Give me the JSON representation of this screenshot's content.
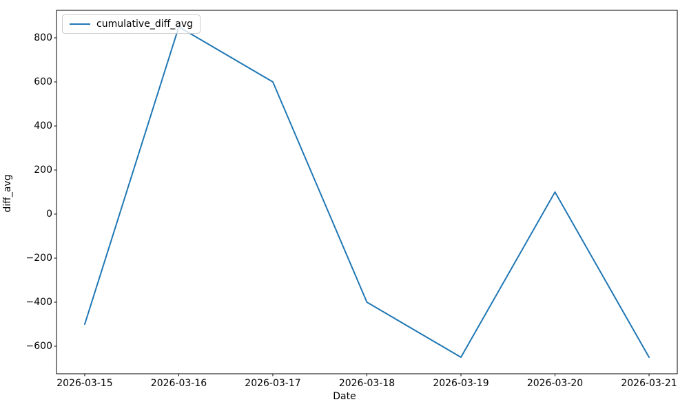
{
  "chart_data": {
    "type": "line",
    "title": "",
    "xlabel": "Date",
    "ylabel": "diff_avg",
    "categories": [
      "2026-03-15",
      "2026-03-16",
      "2026-03-17",
      "2026-03-18",
      "2026-03-19",
      "2026-03-20",
      "2026-03-21"
    ],
    "series": [
      {
        "name": "cumulative_diff_avg",
        "values": [
          -500,
          850,
          600,
          -400,
          -650,
          100,
          -650
        ],
        "color": "#1f77b4"
      }
    ],
    "legend": {
      "position": "upper-left",
      "entries": [
        "cumulative_diff_avg"
      ]
    },
    "xlim": [
      -0.3,
      6.3
    ],
    "ylim": [
      -725,
      925
    ],
    "yticks": [
      800,
      600,
      400,
      200,
      0,
      -200,
      -400,
      -600
    ],
    "grid": false,
    "axis_color": "#000000",
    "background": "#ffffff"
  }
}
